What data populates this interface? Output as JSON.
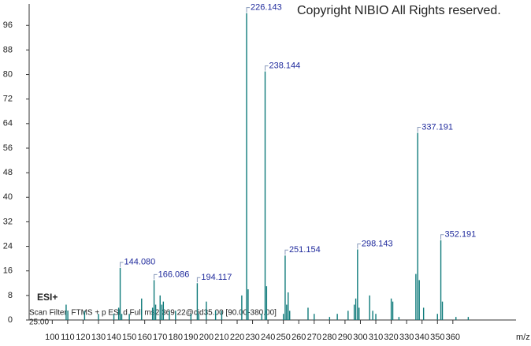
{
  "chart_data": {
    "type": "bar",
    "title": "Copyright NIBIO All Rights reserved.",
    "annotations": [
      "ESI+",
      "Scan Filter: FTMS + p ESI d Full ms2 369.22@cid35.00 [90.00-380.00]",
      "25.00"
    ],
    "x_label": "m/z",
    "color": "#0e7a7a",
    "label_color": "#1f2a9c",
    "x": [
      109.0,
      110.1,
      121.0,
      130.0,
      140.0,
      143.1,
      144.08,
      145.1,
      150.0,
      158.0,
      165.1,
      166.086,
      167.1,
      170.0,
      171.1,
      172.1,
      176.0,
      180.0,
      190.0,
      194.117,
      195.1,
      200.0,
      206.0,
      210.0,
      223.0,
      226.143,
      227.1,
      236.0,
      238.144,
      239.1,
      250.0,
      251.154,
      252.1,
      253.1,
      254.1,
      266.0,
      270.0,
      280.0,
      285.0,
      292.0,
      296.0,
      297.0,
      298.143,
      299.1,
      306.0,
      308.0,
      310.0,
      320.0,
      321.0,
      325.0,
      336.0,
      337.191,
      338.2,
      341.0,
      350.0,
      352.191,
      353.2,
      362.0,
      370.0
    ],
    "values": [
      5,
      3,
      3,
      2,
      2,
      4,
      17,
      2,
      2,
      7,
      4,
      13,
      5,
      8,
      5,
      6,
      3,
      3,
      2,
      12,
      2,
      6,
      3,
      3,
      8,
      100,
      10,
      2,
      81,
      11,
      2,
      21,
      5,
      9,
      3,
      4,
      2,
      1,
      2,
      3,
      5,
      7,
      23,
      4,
      8,
      3,
      2,
      7,
      6,
      1,
      15,
      61,
      13,
      4,
      2,
      26,
      6,
      1,
      1
    ],
    "peak_labels": [
      null,
      null,
      null,
      null,
      null,
      null,
      "144.080",
      null,
      null,
      null,
      null,
      "166.086",
      null,
      null,
      null,
      null,
      null,
      null,
      null,
      "194.117",
      null,
      null,
      null,
      null,
      null,
      "226.143",
      null,
      null,
      "238.144",
      null,
      null,
      "251.154",
      null,
      null,
      null,
      null,
      null,
      null,
      null,
      null,
      null,
      null,
      "298.143",
      null,
      null,
      null,
      null,
      null,
      null,
      null,
      null,
      "337.191",
      null,
      null,
      null,
      "352.191",
      null,
      null,
      null
    ],
    "xlim": [
      85,
      401
    ],
    "xticks": [
      100,
      110,
      120,
      130,
      140,
      150,
      160,
      170,
      180,
      190,
      200,
      210,
      220,
      230,
      240,
      250,
      260,
      270,
      280,
      290,
      300,
      310,
      320,
      330,
      340,
      350,
      360
    ],
    "ylim": [
      0,
      103
    ],
    "yticks": [
      0,
      8,
      16,
      24,
      32,
      40,
      48,
      56,
      64,
      72,
      80,
      88,
      96
    ]
  }
}
